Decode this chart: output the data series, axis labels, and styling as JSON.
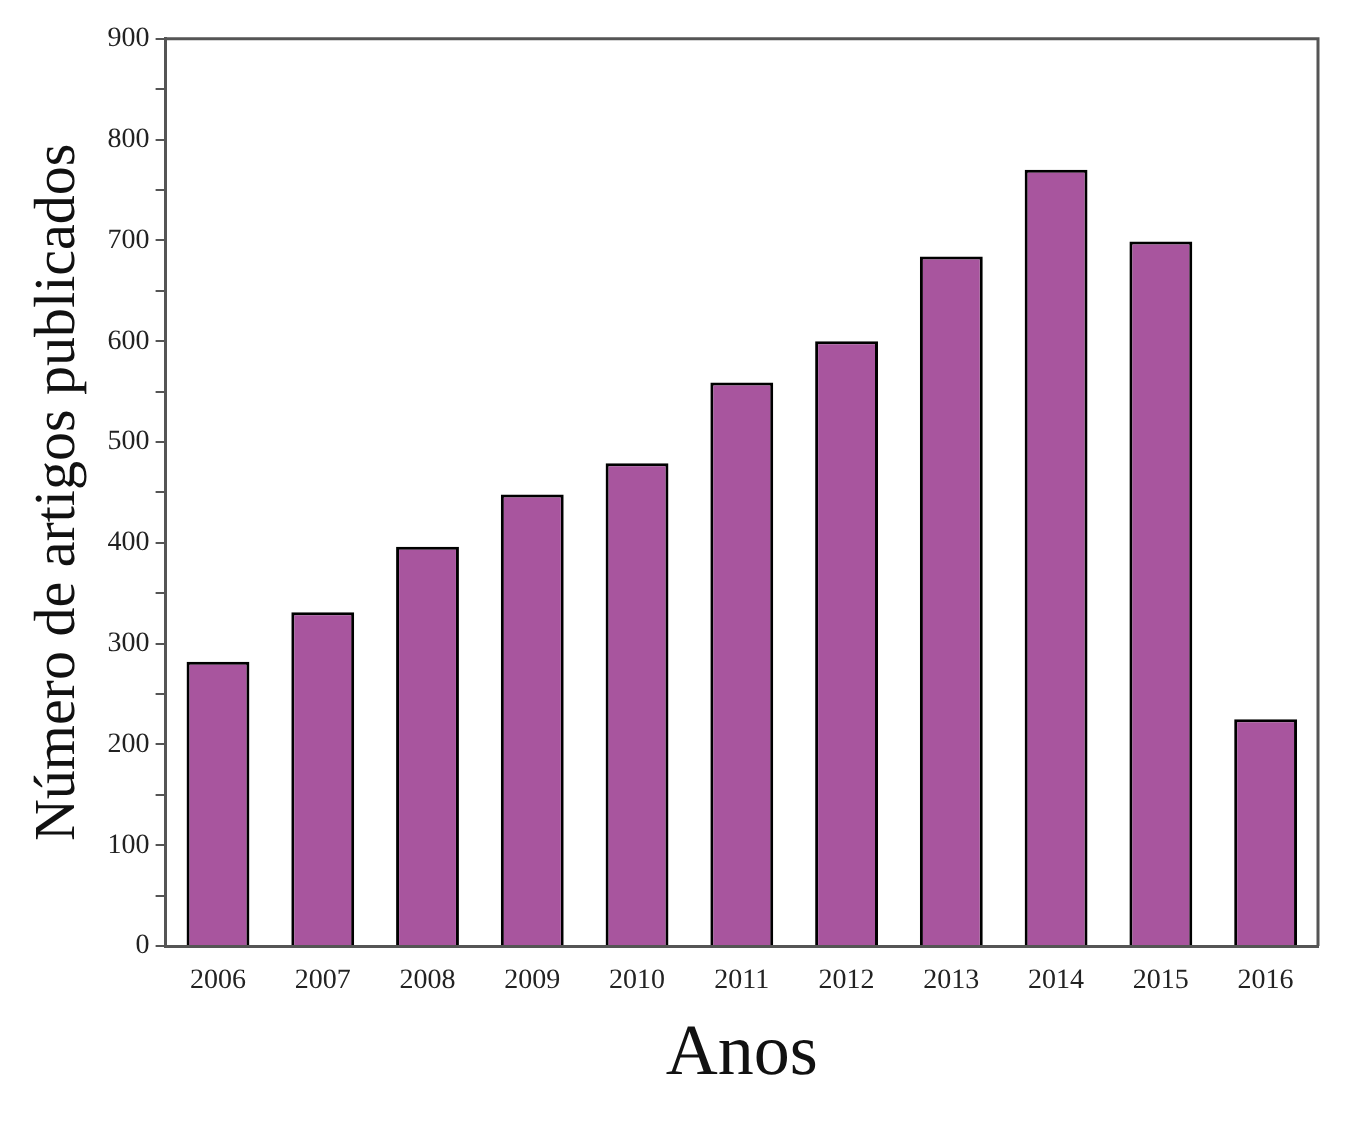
{
  "chart_data": {
    "type": "bar",
    "xlabel": "Anos",
    "ylabel": "Número de artigos publicados",
    "categories": [
      "2006",
      "2007",
      "2008",
      "2009",
      "2010",
      "2011",
      "2012",
      "2013",
      "2014",
      "2015",
      "2016"
    ],
    "values": [
      282,
      331,
      396,
      448,
      479,
      559,
      600,
      684,
      770,
      699,
      225
    ],
    "color": "#a8559e",
    "ylim": [
      0,
      900
    ],
    "yticks": [
      0,
      {
        "value": 50,
        "label": null
      },
      100,
      {
        "value": 150,
        "label": null
      },
      200,
      {
        "value": 250,
        "label": null
      },
      300,
      {
        "value": 350,
        "label": null
      },
      400,
      {
        "value": 450,
        "label": null
      },
      500,
      {
        "value": 550,
        "label": null
      },
      600,
      {
        "value": 650,
        "label": null
      },
      700,
      {
        "value": 750,
        "label": null
      },
      800,
      {
        "value": 850,
        "label": null
      },
      900
    ],
    "grid": false,
    "legend": false
  }
}
